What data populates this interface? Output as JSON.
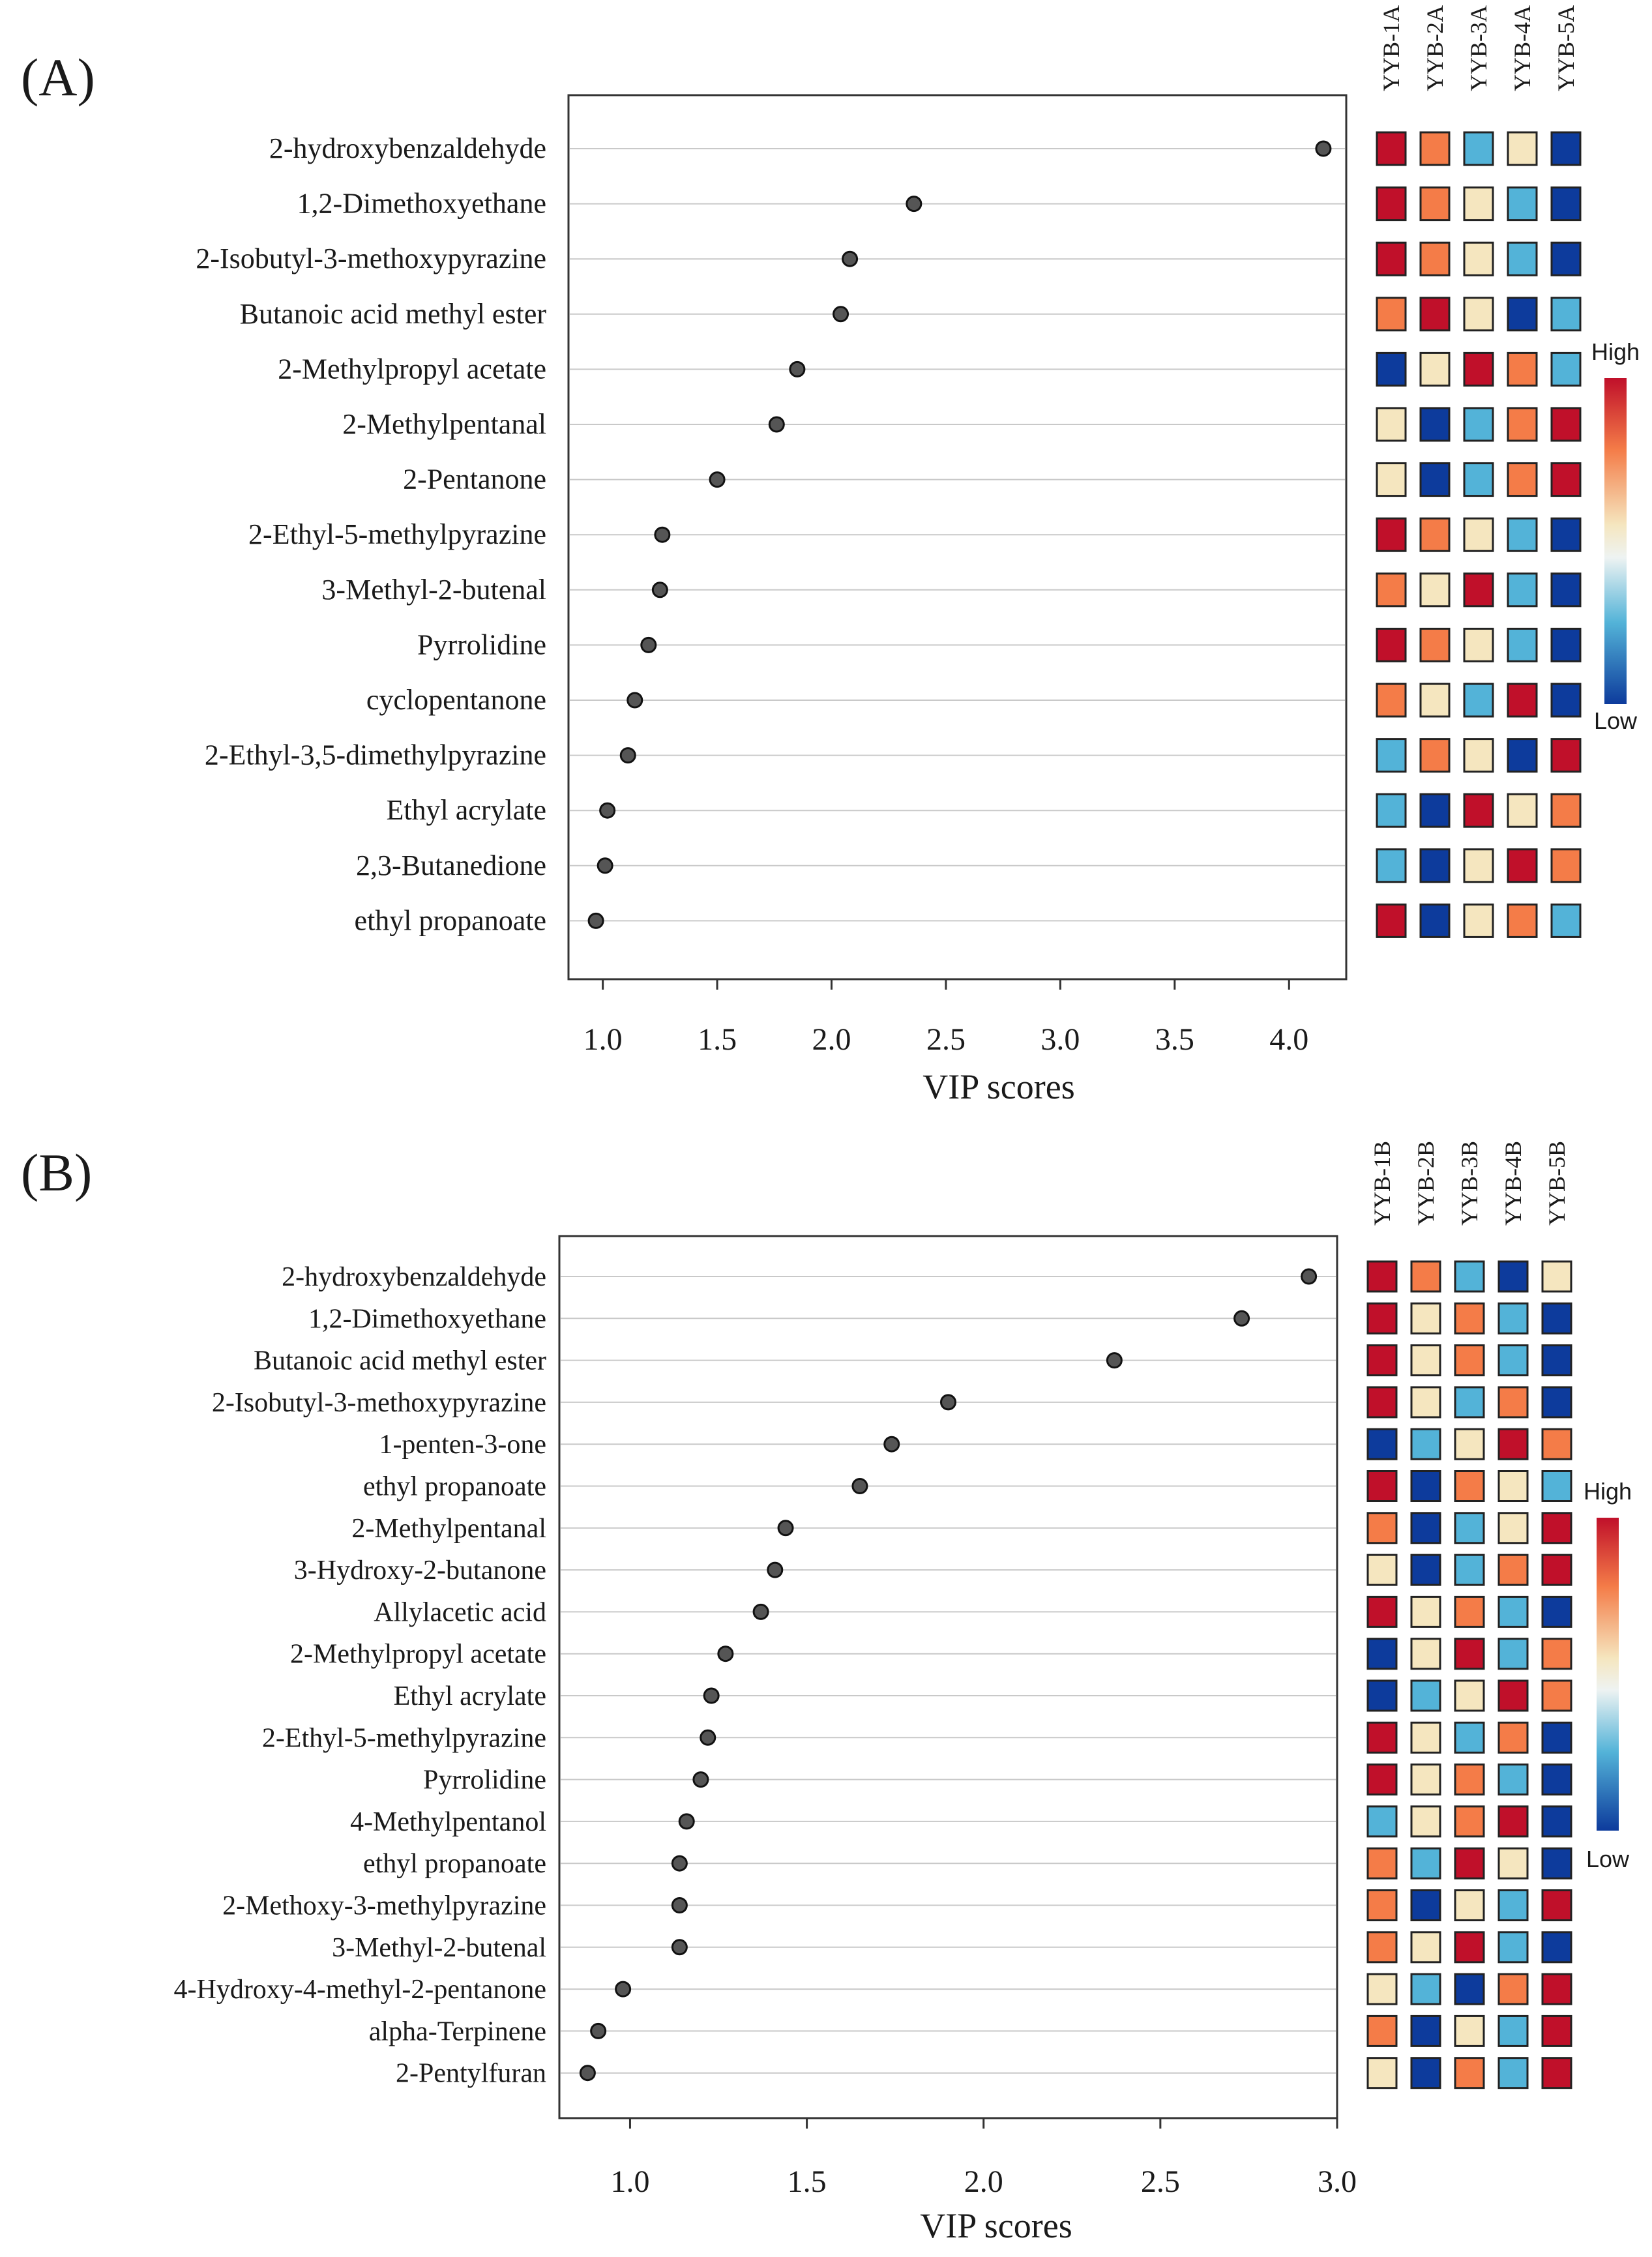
{
  "colors": {
    "c1": "#c0102a",
    "c2": "#f47c48",
    "c3": "#f5e6bf",
    "c4": "#53b3d8",
    "c5": "#0d3b9c",
    "dot": "#555555",
    "grid": "#c9c9c9"
  },
  "legend_labels": {
    "high": "High",
    "low": "Low"
  },
  "chart_data": [
    {
      "type": "scatter",
      "panel": "(A)",
      "xlabel": "VIP scores",
      "xlim": [
        0.85,
        4.25
      ],
      "xticks": [
        1.0,
        1.5,
        2.0,
        2.5,
        3.0,
        3.5,
        4.0
      ],
      "xtick_labels": [
        "1.0",
        "1.5",
        "2.0",
        "2.5",
        "3.0",
        "3.5",
        "4.0"
      ],
      "grid": true,
      "heatmap_columns": [
        "YYB-1A",
        "YYB-2A",
        "YYB-3A",
        "YYB-4A",
        "YYB-5A"
      ],
      "rows": [
        {
          "name": "2-hydroxybenzaldehyde",
          "vip": 4.15,
          "heat": [
            1,
            2,
            4,
            3,
            5
          ]
        },
        {
          "name": "1,2-Dimethoxyethane",
          "vip": 2.36,
          "heat": [
            1,
            2,
            3,
            4,
            5
          ]
        },
        {
          "name": "2-Isobutyl-3-methoxypyrazine",
          "vip": 2.08,
          "heat": [
            1,
            2,
            3,
            4,
            5
          ]
        },
        {
          "name": "Butanoic acid methyl ester",
          "vip": 2.04,
          "heat": [
            2,
            1,
            3,
            5,
            4
          ]
        },
        {
          "name": "2-Methylpropyl acetate",
          "vip": 1.85,
          "heat": [
            5,
            3,
            1,
            2,
            4
          ]
        },
        {
          "name": "2-Methylpentanal",
          "vip": 1.76,
          "heat": [
            3,
            5,
            4,
            2,
            1
          ]
        },
        {
          "name": "2-Pentanone",
          "vip": 1.5,
          "heat": [
            3,
            5,
            4,
            2,
            1
          ]
        },
        {
          "name": "2-Ethyl-5-methylpyrazine",
          "vip": 1.26,
          "heat": [
            1,
            2,
            3,
            4,
            5
          ]
        },
        {
          "name": "3-Methyl-2-butenal",
          "vip": 1.25,
          "heat": [
            2,
            3,
            1,
            4,
            5
          ]
        },
        {
          "name": "Pyrrolidine",
          "vip": 1.2,
          "heat": [
            1,
            2,
            3,
            4,
            5
          ]
        },
        {
          "name": "cyclopentanone",
          "vip": 1.14,
          "heat": [
            2,
            3,
            4,
            1,
            5
          ]
        },
        {
          "name": "2-Ethyl-3,5-dimethylpyrazine",
          "vip": 1.11,
          "heat": [
            4,
            2,
            3,
            5,
            1
          ]
        },
        {
          "name": "Ethyl acrylate",
          "vip": 1.02,
          "heat": [
            4,
            5,
            1,
            3,
            2
          ]
        },
        {
          "name": "2,3-Butanedione",
          "vip": 1.01,
          "heat": [
            4,
            5,
            3,
            1,
            2
          ]
        },
        {
          "name": "ethyl propanoate",
          "vip": 0.97,
          "heat": [
            1,
            5,
            3,
            2,
            4
          ]
        }
      ]
    },
    {
      "type": "scatter",
      "panel": "(B)",
      "xlabel": "VIP scores",
      "xlim": [
        0.8,
        3.0
      ],
      "xticks": [
        1.0,
        1.5,
        2.0,
        2.5,
        3.0
      ],
      "xtick_labels": [
        "1.0",
        "1.5",
        "2.0",
        "2.5",
        "3.0"
      ],
      "grid": true,
      "heatmap_columns": [
        "YYB-1B",
        "YYB-2B",
        "YYB-3B",
        "YYB-4B",
        "YYB-5B"
      ],
      "rows": [
        {
          "name": "2-hydroxybenzaldehyde",
          "vip": 2.92,
          "heat": [
            1,
            2,
            4,
            5,
            3
          ]
        },
        {
          "name": "1,2-Dimethoxyethane",
          "vip": 2.73,
          "heat": [
            1,
            3,
            2,
            4,
            5
          ]
        },
        {
          "name": "Butanoic acid methyl ester",
          "vip": 2.37,
          "heat": [
            1,
            3,
            2,
            4,
            5
          ]
        },
        {
          "name": "2-Isobutyl-3-methoxypyrazine",
          "vip": 1.9,
          "heat": [
            1,
            3,
            4,
            2,
            5
          ]
        },
        {
          "name": "1-penten-3-one",
          "vip": 1.74,
          "heat": [
            5,
            4,
            3,
            1,
            2
          ]
        },
        {
          "name": "ethyl propanoate",
          "vip": 1.65,
          "heat": [
            1,
            5,
            2,
            3,
            4
          ]
        },
        {
          "name": "2-Methylpentanal",
          "vip": 1.44,
          "heat": [
            2,
            5,
            4,
            3,
            1
          ]
        },
        {
          "name": "3-Hydroxy-2-butanone",
          "vip": 1.41,
          "heat": [
            3,
            5,
            4,
            2,
            1
          ]
        },
        {
          "name": "Allylacetic acid",
          "vip": 1.37,
          "heat": [
            1,
            3,
            2,
            4,
            5
          ]
        },
        {
          "name": "2-Methylpropyl acetate",
          "vip": 1.27,
          "heat": [
            5,
            3,
            1,
            4,
            2
          ]
        },
        {
          "name": "Ethyl acrylate",
          "vip": 1.23,
          "heat": [
            5,
            4,
            3,
            1,
            2
          ]
        },
        {
          "name": "2-Ethyl-5-methylpyrazine",
          "vip": 1.22,
          "heat": [
            1,
            3,
            4,
            2,
            5
          ]
        },
        {
          "name": "Pyrrolidine",
          "vip": 1.2,
          "heat": [
            1,
            3,
            2,
            4,
            5
          ]
        },
        {
          "name": "4-Methylpentanol",
          "vip": 1.16,
          "heat": [
            4,
            3,
            2,
            1,
            5
          ]
        },
        {
          "name": "ethyl propanoate",
          "vip": 1.14,
          "heat": [
            2,
            4,
            1,
            3,
            5
          ]
        },
        {
          "name": "2-Methoxy-3-methylpyrazine",
          "vip": 1.14,
          "heat": [
            2,
            5,
            3,
            4,
            1
          ]
        },
        {
          "name": "3-Methyl-2-butenal",
          "vip": 1.14,
          "heat": [
            2,
            3,
            1,
            4,
            5
          ]
        },
        {
          "name": "4-Hydroxy-4-methyl-2-pentanone",
          "vip": 0.98,
          "heat": [
            3,
            4,
            5,
            2,
            1
          ]
        },
        {
          "name": "alpha-Terpinene",
          "vip": 0.91,
          "heat": [
            2,
            5,
            3,
            4,
            1
          ]
        },
        {
          "name": "2-Pentylfuran",
          "vip": 0.88,
          "heat": [
            3,
            5,
            2,
            4,
            1
          ]
        }
      ]
    }
  ]
}
